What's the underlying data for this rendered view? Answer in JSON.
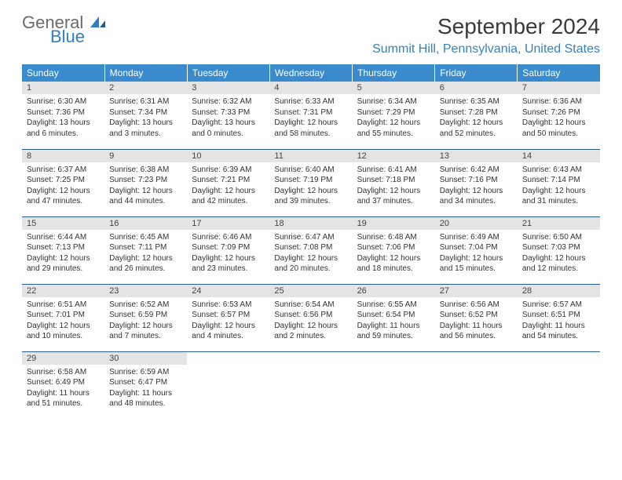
{
  "branding": {
    "word1": "General",
    "word2": "Blue",
    "word1_color": "#6b6b6b",
    "word2_color": "#2f7fc2",
    "sail_color": "#2f7fc2"
  },
  "title": "September 2024",
  "location": "Summit Hill, Pennsylvania, United States",
  "colors": {
    "header_bg": "#3a8bce",
    "header_text": "#ffffff",
    "daynum_bg": "#e4e4e4",
    "row_border": "#2b5d8a",
    "body_text": "#333333",
    "title_text": "#3a3a3a",
    "location_text": "#3a7fbf"
  },
  "weekdays": [
    "Sunday",
    "Monday",
    "Tuesday",
    "Wednesday",
    "Thursday",
    "Friday",
    "Saturday"
  ],
  "weeks": [
    [
      {
        "n": "1",
        "sr": "6:30 AM",
        "ss": "7:36 PM",
        "dl": "13 hours and 6 minutes."
      },
      {
        "n": "2",
        "sr": "6:31 AM",
        "ss": "7:34 PM",
        "dl": "13 hours and 3 minutes."
      },
      {
        "n": "3",
        "sr": "6:32 AM",
        "ss": "7:33 PM",
        "dl": "13 hours and 0 minutes."
      },
      {
        "n": "4",
        "sr": "6:33 AM",
        "ss": "7:31 PM",
        "dl": "12 hours and 58 minutes."
      },
      {
        "n": "5",
        "sr": "6:34 AM",
        "ss": "7:29 PM",
        "dl": "12 hours and 55 minutes."
      },
      {
        "n": "6",
        "sr": "6:35 AM",
        "ss": "7:28 PM",
        "dl": "12 hours and 52 minutes."
      },
      {
        "n": "7",
        "sr": "6:36 AM",
        "ss": "7:26 PM",
        "dl": "12 hours and 50 minutes."
      }
    ],
    [
      {
        "n": "8",
        "sr": "6:37 AM",
        "ss": "7:25 PM",
        "dl": "12 hours and 47 minutes."
      },
      {
        "n": "9",
        "sr": "6:38 AM",
        "ss": "7:23 PM",
        "dl": "12 hours and 44 minutes."
      },
      {
        "n": "10",
        "sr": "6:39 AM",
        "ss": "7:21 PM",
        "dl": "12 hours and 42 minutes."
      },
      {
        "n": "11",
        "sr": "6:40 AM",
        "ss": "7:19 PM",
        "dl": "12 hours and 39 minutes."
      },
      {
        "n": "12",
        "sr": "6:41 AM",
        "ss": "7:18 PM",
        "dl": "12 hours and 37 minutes."
      },
      {
        "n": "13",
        "sr": "6:42 AM",
        "ss": "7:16 PM",
        "dl": "12 hours and 34 minutes."
      },
      {
        "n": "14",
        "sr": "6:43 AM",
        "ss": "7:14 PM",
        "dl": "12 hours and 31 minutes."
      }
    ],
    [
      {
        "n": "15",
        "sr": "6:44 AM",
        "ss": "7:13 PM",
        "dl": "12 hours and 29 minutes."
      },
      {
        "n": "16",
        "sr": "6:45 AM",
        "ss": "7:11 PM",
        "dl": "12 hours and 26 minutes."
      },
      {
        "n": "17",
        "sr": "6:46 AM",
        "ss": "7:09 PM",
        "dl": "12 hours and 23 minutes."
      },
      {
        "n": "18",
        "sr": "6:47 AM",
        "ss": "7:08 PM",
        "dl": "12 hours and 20 minutes."
      },
      {
        "n": "19",
        "sr": "6:48 AM",
        "ss": "7:06 PM",
        "dl": "12 hours and 18 minutes."
      },
      {
        "n": "20",
        "sr": "6:49 AM",
        "ss": "7:04 PM",
        "dl": "12 hours and 15 minutes."
      },
      {
        "n": "21",
        "sr": "6:50 AM",
        "ss": "7:03 PM",
        "dl": "12 hours and 12 minutes."
      }
    ],
    [
      {
        "n": "22",
        "sr": "6:51 AM",
        "ss": "7:01 PM",
        "dl": "12 hours and 10 minutes."
      },
      {
        "n": "23",
        "sr": "6:52 AM",
        "ss": "6:59 PM",
        "dl": "12 hours and 7 minutes."
      },
      {
        "n": "24",
        "sr": "6:53 AM",
        "ss": "6:57 PM",
        "dl": "12 hours and 4 minutes."
      },
      {
        "n": "25",
        "sr": "6:54 AM",
        "ss": "6:56 PM",
        "dl": "12 hours and 2 minutes."
      },
      {
        "n": "26",
        "sr": "6:55 AM",
        "ss": "6:54 PM",
        "dl": "11 hours and 59 minutes."
      },
      {
        "n": "27",
        "sr": "6:56 AM",
        "ss": "6:52 PM",
        "dl": "11 hours and 56 minutes."
      },
      {
        "n": "28",
        "sr": "6:57 AM",
        "ss": "6:51 PM",
        "dl": "11 hours and 54 minutes."
      }
    ],
    [
      {
        "n": "29",
        "sr": "6:58 AM",
        "ss": "6:49 PM",
        "dl": "11 hours and 51 minutes."
      },
      {
        "n": "30",
        "sr": "6:59 AM",
        "ss": "6:47 PM",
        "dl": "11 hours and 48 minutes."
      },
      null,
      null,
      null,
      null,
      null
    ]
  ],
  "labels": {
    "sunrise": "Sunrise:",
    "sunset": "Sunset:",
    "daylight": "Daylight:"
  }
}
